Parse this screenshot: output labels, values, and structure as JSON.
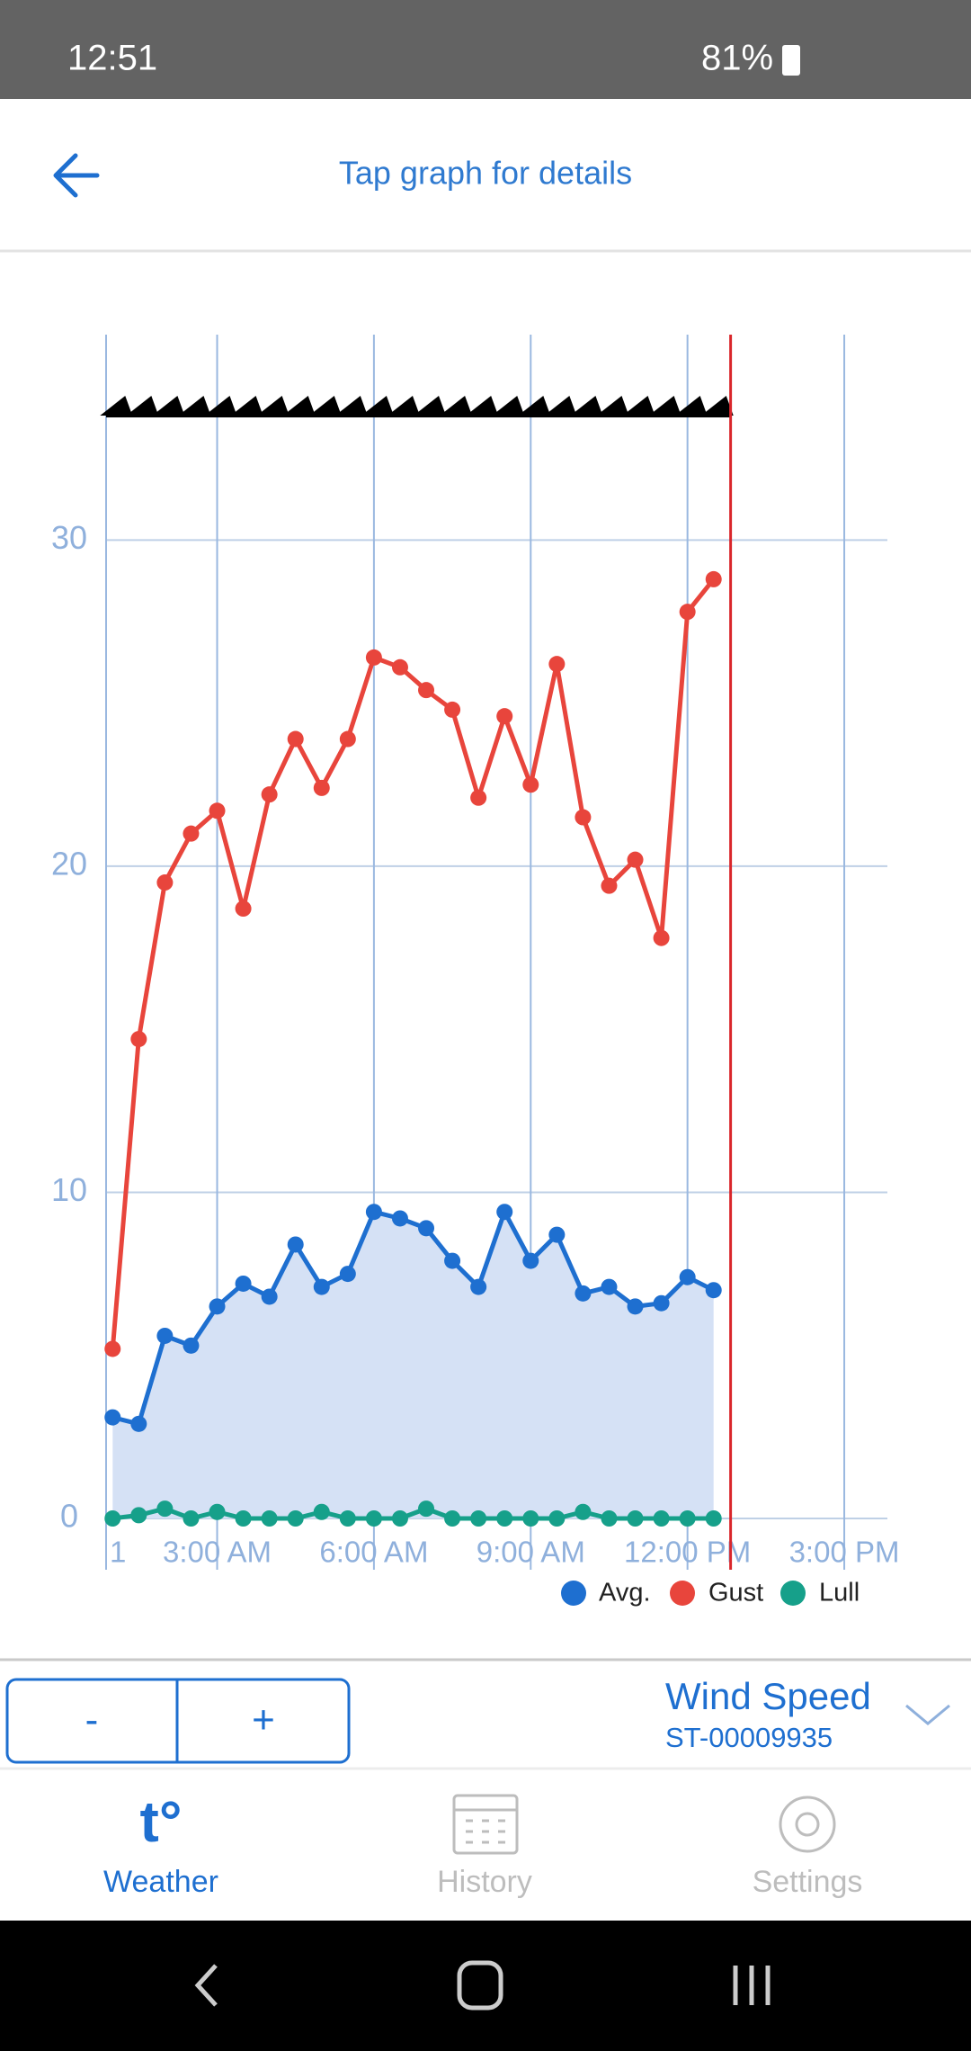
{
  "status_bar": {
    "time": "12:51",
    "battery": "81%"
  },
  "header": {
    "title": "Tap graph for details"
  },
  "chart_data": {
    "type": "line",
    "x": [
      1,
      1.5,
      2,
      2.5,
      3,
      3.5,
      4,
      4.5,
      5,
      5.5,
      6,
      6.5,
      7,
      7.5,
      8,
      8.5,
      9,
      9.5,
      10,
      10.5,
      11,
      11.5,
      12,
      12.5
    ],
    "series": [
      {
        "name": "Avg.",
        "color": "#1e6fd0",
        "fill": "#d5e1f5",
        "values": [
          3.1,
          2.9,
          5.6,
          5.3,
          6.5,
          7.2,
          6.8,
          8.4,
          7.1,
          7.5,
          9.4,
          9.2,
          8.9,
          7.9,
          7.1,
          9.4,
          7.9,
          8.7,
          6.9,
          7.1,
          6.5,
          6.6,
          7.4,
          7.0
        ]
      },
      {
        "name": "Gust",
        "color": "#e8453c",
        "values": [
          5.2,
          14.7,
          19.5,
          21.0,
          21.7,
          18.7,
          22.2,
          23.9,
          22.4,
          23.9,
          26.4,
          26.1,
          25.4,
          24.8,
          22.1,
          24.6,
          22.5,
          26.2,
          21.5,
          19.4,
          20.2,
          17.8,
          27.8,
          28.8
        ]
      },
      {
        "name": "Lull",
        "color": "#16a08a",
        "values": [
          0,
          0.1,
          0.3,
          0,
          0.2,
          0,
          0,
          0,
          0.2,
          0,
          0,
          0,
          0.3,
          0,
          0,
          0,
          0,
          0,
          0.2,
          0,
          0,
          0,
          0,
          0
        ]
      }
    ],
    "xlim": [
      0.875,
      15.825
    ],
    "ylim": [
      0,
      36.3
    ],
    "xticks": [
      {
        "value": 0.875,
        "label": "1"
      },
      {
        "value": 3,
        "label": "3:00 AM"
      },
      {
        "value": 6,
        "label": "6:00 AM"
      },
      {
        "value": 9,
        "label": "9:00 AM"
      },
      {
        "value": 12,
        "label": "12:00 PM"
      },
      {
        "value": 15,
        "label": "3:00 PM"
      }
    ],
    "yticks": [
      0,
      10,
      20,
      30
    ],
    "now_x": 12.825,
    "now_color": "#d9262b",
    "grid": true
  },
  "controls": {
    "minus": "-",
    "plus": "+",
    "metric": "Wind Speed",
    "station": "ST-00009935"
  },
  "nav": {
    "icon": "t°",
    "items": [
      "Weather",
      "History",
      "Settings"
    ]
  }
}
